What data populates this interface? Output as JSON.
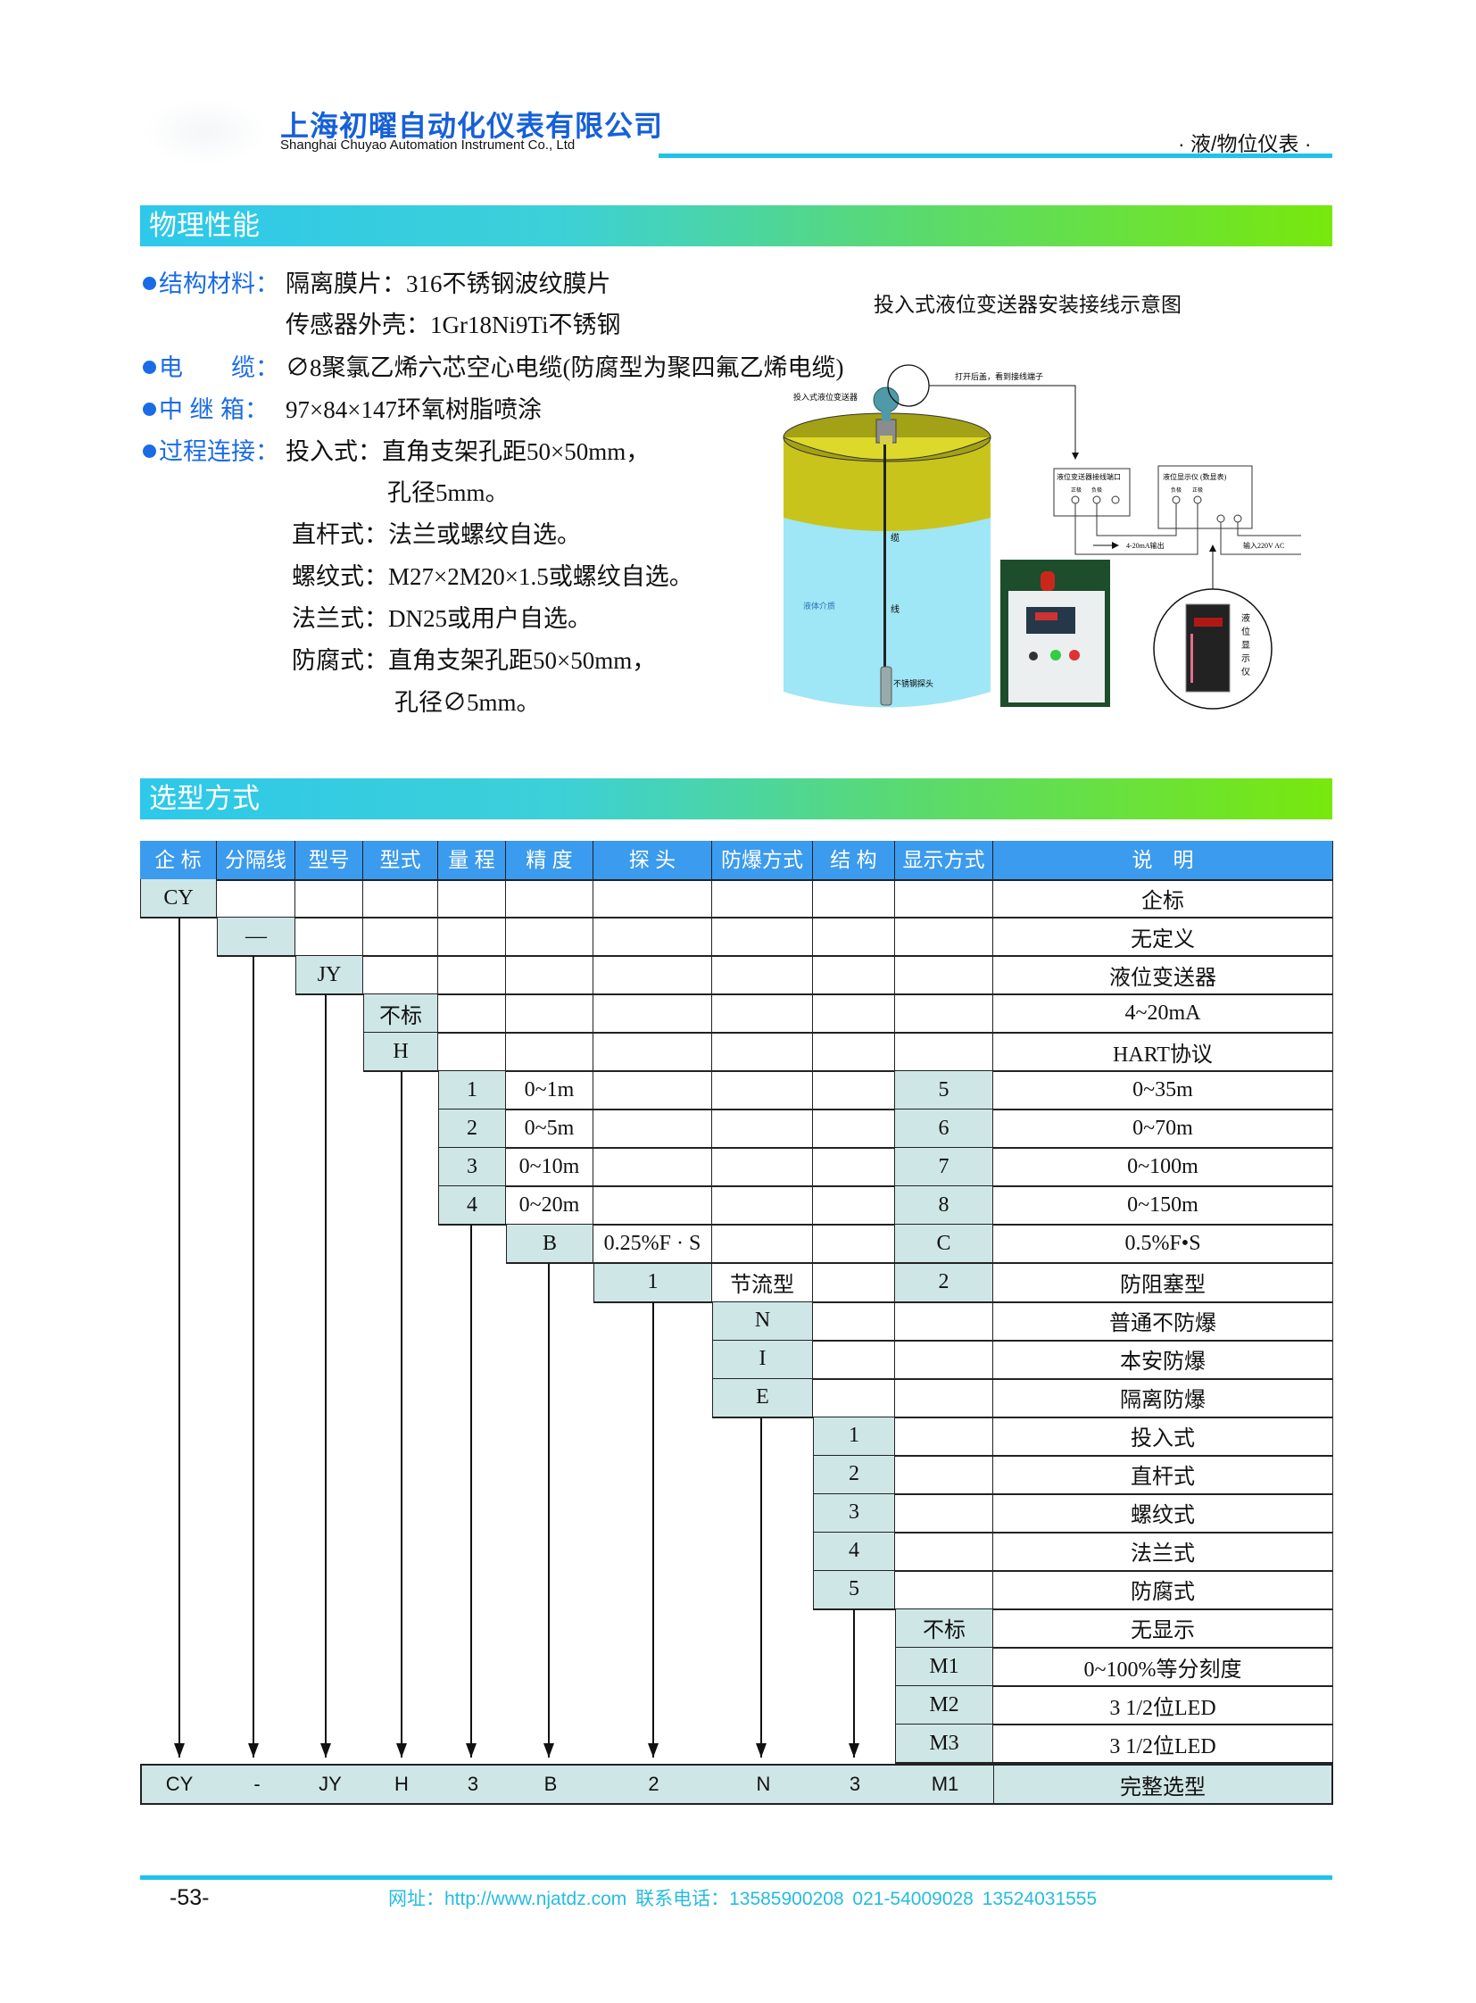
{
  "header": {
    "company_cn": "上海初曜自动化仪表有限公司",
    "company_en": "Shanghai Chuyao Automation Instrument Co., Ltd",
    "category": "· 液/物位仪表 ·"
  },
  "physical": {
    "title": "物理性能",
    "items": [
      {
        "label": "结构材料：",
        "value": "隔离膜片：316不锈钢波纹膜片"
      },
      {
        "label": "",
        "value": "传感器外壳：1Gr18Ni9Ti不锈钢"
      },
      {
        "label": "电　　缆：",
        "value": "∅8聚氯乙烯六芯空心电缆(防腐型为聚四氟乙烯电缆)"
      },
      {
        "label": "中 继 箱：",
        "value": "97×84×147环氧树脂喷涂"
      },
      {
        "label": "过程连接：",
        "value": "投入式：直角支架孔距50×50mm，"
      },
      {
        "label": "",
        "value": "孔径5mm。"
      },
      {
        "label": "",
        "value": "直杆式：法兰或螺纹自选。"
      },
      {
        "label": "",
        "value": "螺纹式：M27×2M20×1.5或螺纹自选。"
      },
      {
        "label": "",
        "value": "法兰式：DN25或用户自选。"
      },
      {
        "label": "",
        "value": "防腐式：直角支架孔距50×50mm，"
      },
      {
        "label": "",
        "value": "孔径∅5mm。"
      }
    ]
  },
  "diagram": {
    "title": "投入式液位变送器安装接线示意图",
    "transmitter": "投入式液位变送器",
    "open_cover": "打开后盖，看到接线端子",
    "terminal_box": "液位变送器接线端口",
    "positive": "正极",
    "negative": "负极",
    "display_box": "液位显示仪 (数显表)",
    "output": "4-20mA输出",
    "power": "输入220V AC",
    "cable_1": "缆",
    "cable_2": "线",
    "liquid": "液体介质",
    "probe": "不锈钢探头",
    "display_vertical": [
      "液",
      "位",
      "显",
      "示",
      "仪"
    ]
  },
  "selection": {
    "title": "选型方式",
    "headers": [
      "企 标",
      "分隔线",
      "型号",
      "型式",
      "量 程",
      "精 度",
      "探 头",
      "防爆方式",
      "结 构",
      "显示方式",
      "说　明"
    ],
    "rows": [
      {
        "start": 0,
        "cells": [
          "CY",
          "",
          "",
          "",
          "",
          "",
          "",
          "",
          "",
          ""
        ],
        "codes": [
          0
        ],
        "desc": "企标"
      },
      {
        "start": 1,
        "cells": [
          "",
          "—",
          "",
          "",
          "",
          "",
          "",
          "",
          "",
          ""
        ],
        "codes": [
          1
        ],
        "desc": "无定义"
      },
      {
        "start": 2,
        "cells": [
          "",
          "",
          "JY",
          "",
          "",
          "",
          "",
          "",
          "",
          ""
        ],
        "codes": [
          2
        ],
        "desc": "液位变送器"
      },
      {
        "start": 3,
        "cells": [
          "",
          "",
          "",
          "不标",
          "",
          "",
          "",
          "",
          "",
          ""
        ],
        "codes": [
          3
        ],
        "desc": "4~20mA"
      },
      {
        "start": 3,
        "cells": [
          "",
          "",
          "",
          "H",
          "",
          "",
          "",
          "",
          "",
          ""
        ],
        "codes": [
          3
        ],
        "desc": "HART协议"
      },
      {
        "start": 4,
        "cells": [
          "",
          "",
          "",
          "",
          "1",
          "0~1m",
          "",
          "",
          "",
          "5"
        ],
        "codes": [
          4,
          9
        ],
        "desc": "0~35m"
      },
      {
        "start": 4,
        "cells": [
          "",
          "",
          "",
          "",
          "2",
          "0~5m",
          "",
          "",
          "",
          "6"
        ],
        "codes": [
          4,
          9
        ],
        "desc": "0~70m"
      },
      {
        "start": 4,
        "cells": [
          "",
          "",
          "",
          "",
          "3",
          "0~10m",
          "",
          "",
          "",
          "7"
        ],
        "codes": [
          4,
          9
        ],
        "desc": "0~100m"
      },
      {
        "start": 4,
        "cells": [
          "",
          "",
          "",
          "",
          "4",
          "0~20m",
          "",
          "",
          "",
          "8"
        ],
        "codes": [
          4,
          9
        ],
        "desc": "0~150m"
      },
      {
        "start": 5,
        "cells": [
          "",
          "",
          "",
          "",
          "",
          "B",
          "0.25%F · S",
          "",
          "",
          "C"
        ],
        "codes": [
          5,
          9
        ],
        "desc": "0.5%F•S"
      },
      {
        "start": 6,
        "cells": [
          "",
          "",
          "",
          "",
          "",
          "",
          "1",
          "节流型",
          "",
          "2"
        ],
        "codes": [
          6,
          9
        ],
        "desc": "防阻塞型"
      },
      {
        "start": 7,
        "cells": [
          "",
          "",
          "",
          "",
          "",
          "",
          "",
          "N",
          "",
          ""
        ],
        "codes": [
          7
        ],
        "desc": "普通不防爆"
      },
      {
        "start": 7,
        "cells": [
          "",
          "",
          "",
          "",
          "",
          "",
          "",
          "I",
          "",
          ""
        ],
        "codes": [
          7
        ],
        "desc": "本安防爆"
      },
      {
        "start": 7,
        "cells": [
          "",
          "",
          "",
          "",
          "",
          "",
          "",
          "E",
          "",
          ""
        ],
        "codes": [
          7
        ],
        "desc": "隔离防爆"
      },
      {
        "start": 8,
        "cells": [
          "",
          "",
          "",
          "",
          "",
          "",
          "",
          "",
          "1",
          ""
        ],
        "codes": [
          8
        ],
        "desc": "投入式"
      },
      {
        "start": 8,
        "cells": [
          "",
          "",
          "",
          "",
          "",
          "",
          "",
          "",
          "2",
          ""
        ],
        "codes": [
          8
        ],
        "desc": "直杆式"
      },
      {
        "start": 8,
        "cells": [
          "",
          "",
          "",
          "",
          "",
          "",
          "",
          "",
          "3",
          ""
        ],
        "codes": [
          8
        ],
        "desc": "螺纹式"
      },
      {
        "start": 8,
        "cells": [
          "",
          "",
          "",
          "",
          "",
          "",
          "",
          "",
          "4",
          ""
        ],
        "codes": [
          8
        ],
        "desc": "法兰式"
      },
      {
        "start": 8,
        "cells": [
          "",
          "",
          "",
          "",
          "",
          "",
          "",
          "",
          "5",
          ""
        ],
        "codes": [
          8
        ],
        "desc": "防腐式"
      },
      {
        "start": 9,
        "cells": [
          "",
          "",
          "",
          "",
          "",
          "",
          "",
          "",
          "",
          "不标"
        ],
        "codes": [
          9
        ],
        "desc": "无显示"
      },
      {
        "start": 9,
        "cells": [
          "",
          "",
          "",
          "",
          "",
          "",
          "",
          "",
          "",
          "M1"
        ],
        "codes": [
          9
        ],
        "desc": "0~100%等分刻度"
      },
      {
        "start": 9,
        "cells": [
          "",
          "",
          "",
          "",
          "",
          "",
          "",
          "",
          "",
          "M2"
        ],
        "codes": [
          9
        ],
        "desc": "3 1/2位LED"
      },
      {
        "start": 9,
        "cells": [
          "",
          "",
          "",
          "",
          "",
          "",
          "",
          "",
          "",
          "M3"
        ],
        "codes": [
          9
        ],
        "desc": "3 1/2位LED"
      }
    ],
    "example": {
      "cells": [
        "CY",
        "-",
        "JY",
        "H",
        "3",
        "B",
        "2",
        "N",
        "3",
        "M1"
      ],
      "desc": "完整选型"
    }
  },
  "footer": {
    "page": "-53-",
    "contact": "网址：http://www.njatdz.com  联系电话：13585900208 021-54009028 13524031555"
  },
  "colors": {
    "brand_blue": "#1660d8",
    "accent_cyan": "#1ec3ec",
    "table_header": "#3b9bee",
    "code_cell": "#cfe6e6"
  }
}
